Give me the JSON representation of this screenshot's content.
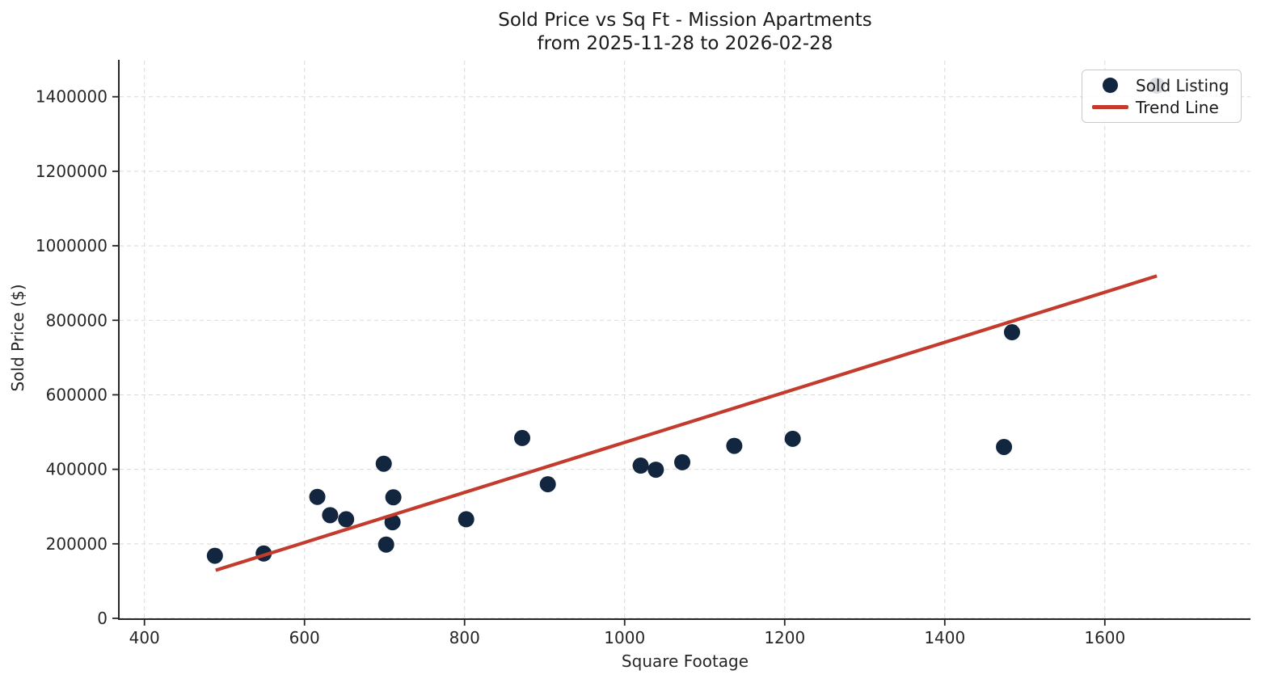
{
  "chart_data": {
    "type": "scatter",
    "title": "Sold Price vs Sq Ft - Mission Apartments",
    "subtitle": "from 2025-11-28 to 2026-02-28",
    "xlabel": "Square Footage",
    "ylabel": "Sold Price ($)",
    "xlim": [
      369,
      1782
    ],
    "ylim": [
      0,
      1497000
    ],
    "x_ticks": [
      400,
      600,
      800,
      1000,
      1200,
      1400,
      1600
    ],
    "y_ticks": [
      0,
      200000,
      400000,
      600000,
      800000,
      1000000,
      1200000,
      1400000
    ],
    "grid": true,
    "legend": {
      "position": "upper right",
      "entries": [
        {
          "label": "Sold Listing",
          "swatch": "marker",
          "color": "#13263F"
        },
        {
          "label": "Trend Line",
          "swatch": "line",
          "color": "#C23B2C"
        }
      ]
    },
    "series": [
      {
        "name": "Sold Listing",
        "type": "scatter",
        "color": "#13263F",
        "marker": "circle",
        "points": [
          [
            488,
            168000
          ],
          [
            549,
            174000
          ],
          [
            616,
            326000
          ],
          [
            632,
            277000
          ],
          [
            652,
            266000
          ],
          [
            699,
            415000
          ],
          [
            702,
            198000
          ],
          [
            710,
            258000
          ],
          [
            711,
            325000
          ],
          [
            802,
            266000
          ],
          [
            872,
            484000
          ],
          [
            904,
            360000
          ],
          [
            1020,
            410000
          ],
          [
            1039,
            399000
          ],
          [
            1072,
            419000
          ],
          [
            1137,
            463000
          ],
          [
            1210,
            482000
          ],
          [
            1474,
            460000
          ],
          [
            1484,
            768000
          ],
          [
            1665,
            1430000
          ]
        ]
      },
      {
        "name": "Trend Line",
        "type": "line",
        "color": "#C23B2C",
        "points": [
          [
            489,
            129000
          ],
          [
            1665,
            919000
          ]
        ]
      }
    ],
    "colors": {
      "point": "#13263F",
      "trend": "#C23B2C",
      "grid": "#D9D9D9",
      "axis": "#262626",
      "text": "#262626",
      "legend_border": "#C9C9C9",
      "background": "#FFFFFF"
    }
  }
}
